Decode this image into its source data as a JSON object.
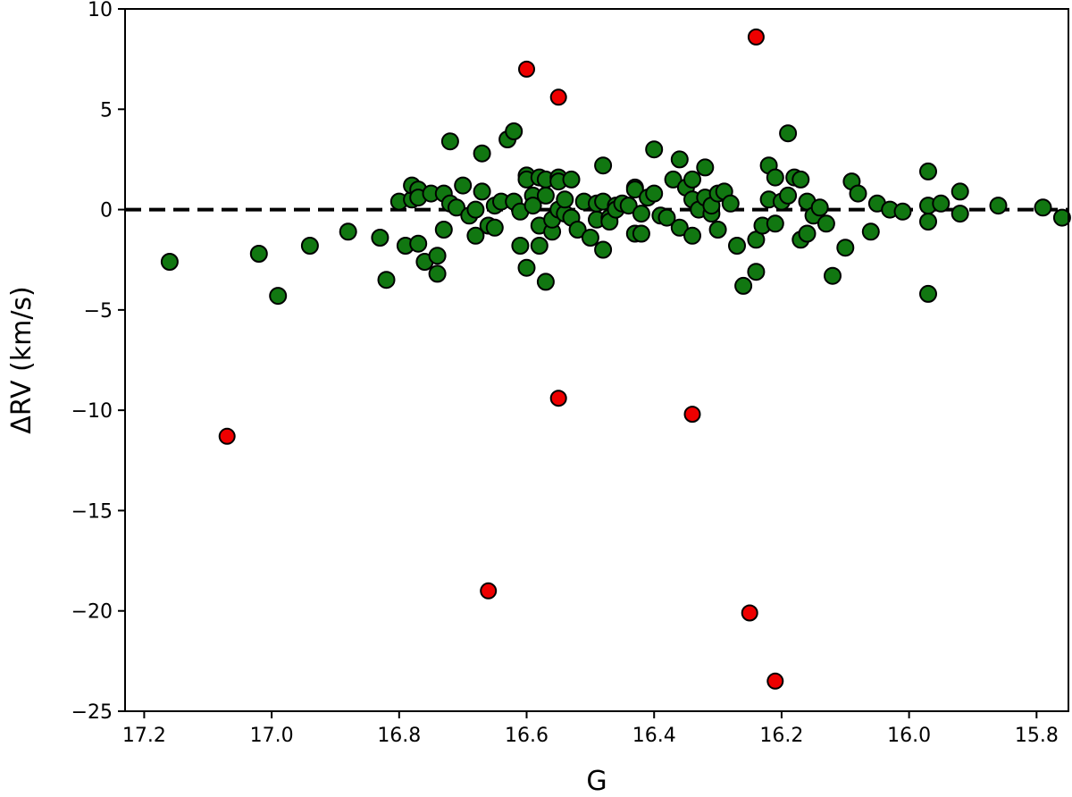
{
  "chart_data": {
    "type": "scatter",
    "xlabel": "G",
    "ylabel": "ΔRV (km/s)",
    "xlim": [
      17.23,
      15.75
    ],
    "ylim": [
      -25.0,
      10.0
    ],
    "x_inverted": true,
    "xticks": [
      17.2,
      17.0,
      16.8,
      16.6,
      16.4,
      16.2,
      16.0,
      15.8
    ],
    "xtick_labels": [
      "17.2",
      "17.0",
      "16.8",
      "16.6",
      "16.4",
      "16.2",
      "16.0",
      "15.8"
    ],
    "yticks": [
      10,
      5,
      0,
      -5,
      -10,
      -15,
      -20,
      -25
    ],
    "ytick_labels": [
      "10",
      "5",
      "0",
      "−5",
      "−10",
      "−15",
      "−20",
      "−25"
    ],
    "grid": false,
    "reference_line": {
      "y": 0,
      "style": "dashed",
      "color": "#000000"
    },
    "colors": {
      "inlier": "#117711",
      "outlier": "#ee0000",
      "edge": "#000000"
    },
    "series": [
      {
        "points": [
          [
            17.16,
            -2.6
          ],
          [
            17.02,
            -2.2
          ],
          [
            16.99,
            -4.3
          ],
          [
            16.94,
            -1.8
          ],
          [
            16.88,
            -1.1
          ],
          [
            16.83,
            -1.4
          ],
          [
            16.82,
            -3.5
          ],
          [
            16.8,
            0.4
          ],
          [
            16.79,
            -1.8
          ],
          [
            16.78,
            0.5
          ],
          [
            16.78,
            1.2
          ],
          [
            16.77,
            1.0
          ],
          [
            16.77,
            0.6
          ],
          [
            16.77,
            -1.7
          ],
          [
            16.76,
            -2.6
          ],
          [
            16.75,
            0.8
          ],
          [
            16.74,
            -3.2
          ],
          [
            16.74,
            -2.3
          ],
          [
            16.73,
            -1.0
          ],
          [
            16.73,
            0.8
          ],
          [
            16.72,
            0.3
          ],
          [
            16.72,
            3.4
          ],
          [
            16.71,
            0.1
          ],
          [
            16.7,
            1.2
          ],
          [
            16.69,
            -0.3
          ],
          [
            16.68,
            -1.3
          ],
          [
            16.68,
            0.0
          ],
          [
            16.67,
            2.8
          ],
          [
            16.67,
            0.9
          ],
          [
            16.66,
            -0.8
          ],
          [
            16.65,
            -0.9
          ],
          [
            16.65,
            0.2
          ],
          [
            16.64,
            0.4
          ],
          [
            16.63,
            3.5
          ],
          [
            16.62,
            3.9
          ],
          [
            16.62,
            0.4
          ],
          [
            16.61,
            -0.1
          ],
          [
            16.61,
            -1.8
          ],
          [
            16.6,
            1.7
          ],
          [
            16.6,
            1.5
          ],
          [
            16.6,
            -2.9
          ],
          [
            16.59,
            0.7
          ],
          [
            16.59,
            0.2
          ],
          [
            16.58,
            1.6
          ],
          [
            16.58,
            -0.8
          ],
          [
            16.58,
            -1.8
          ],
          [
            16.57,
            -3.6
          ],
          [
            16.57,
            1.5
          ],
          [
            16.57,
            0.7
          ],
          [
            16.56,
            -1.1
          ],
          [
            16.56,
            -0.5
          ],
          [
            16.55,
            0.0
          ],
          [
            16.55,
            1.6
          ],
          [
            16.55,
            1.4
          ],
          [
            16.54,
            -0.2
          ],
          [
            16.54,
            0.5
          ],
          [
            16.53,
            -0.4
          ],
          [
            16.53,
            1.5
          ],
          [
            16.52,
            -1.0
          ],
          [
            16.51,
            0.4
          ],
          [
            16.5,
            -1.4
          ],
          [
            16.49,
            -0.5
          ],
          [
            16.49,
            0.3
          ],
          [
            16.48,
            -2.0
          ],
          [
            16.48,
            0.4
          ],
          [
            16.48,
            2.2
          ],
          [
            16.47,
            -0.4
          ],
          [
            16.47,
            -0.6
          ],
          [
            16.46,
            0.2
          ],
          [
            16.46,
            0.0
          ],
          [
            16.45,
            0.3
          ],
          [
            16.44,
            0.2
          ],
          [
            16.43,
            1.1
          ],
          [
            16.43,
            1.0
          ],
          [
            16.43,
            -1.2
          ],
          [
            16.42,
            -0.2
          ],
          [
            16.42,
            -1.2
          ],
          [
            16.41,
            0.6
          ],
          [
            16.4,
            3.0
          ],
          [
            16.4,
            0.8
          ],
          [
            16.39,
            -0.3
          ],
          [
            16.38,
            -0.4
          ],
          [
            16.37,
            1.5
          ],
          [
            16.36,
            -0.9
          ],
          [
            16.36,
            2.5
          ],
          [
            16.35,
            1.1
          ],
          [
            16.34,
            -1.3
          ],
          [
            16.34,
            0.5
          ],
          [
            16.34,
            1.5
          ],
          [
            16.33,
            0.0
          ],
          [
            16.32,
            2.1
          ],
          [
            16.32,
            0.6
          ],
          [
            16.31,
            -0.2
          ],
          [
            16.31,
            0.2
          ],
          [
            16.3,
            0.8
          ],
          [
            16.3,
            -1.0
          ],
          [
            16.29,
            0.9
          ],
          [
            16.28,
            0.3
          ],
          [
            16.27,
            -1.8
          ],
          [
            16.26,
            -3.8
          ],
          [
            16.24,
            -3.1
          ],
          [
            16.24,
            -1.5
          ],
          [
            16.23,
            -0.8
          ],
          [
            16.22,
            0.5
          ],
          [
            16.22,
            2.2
          ],
          [
            16.21,
            -0.7
          ],
          [
            16.21,
            1.6
          ],
          [
            16.2,
            0.4
          ],
          [
            16.19,
            3.8
          ],
          [
            16.19,
            0.7
          ],
          [
            16.18,
            1.6
          ],
          [
            16.17,
            -1.5
          ],
          [
            16.17,
            1.5
          ],
          [
            16.16,
            -1.2
          ],
          [
            16.16,
            0.4
          ],
          [
            16.15,
            -0.3
          ],
          [
            16.14,
            0.1
          ],
          [
            16.13,
            -0.7
          ],
          [
            16.12,
            -3.3
          ],
          [
            16.1,
            -1.9
          ],
          [
            16.09,
            1.4
          ],
          [
            16.08,
            0.8
          ],
          [
            16.06,
            -1.1
          ],
          [
            16.05,
            0.3
          ],
          [
            16.03,
            0.0
          ],
          [
            16.01,
            -0.1
          ],
          [
            15.97,
            1.9
          ],
          [
            15.97,
            0.2
          ],
          [
            15.97,
            -0.6
          ],
          [
            15.97,
            -4.2
          ],
          [
            15.95,
            0.3
          ],
          [
            15.92,
            0.9
          ],
          [
            15.92,
            -0.2
          ],
          [
            15.86,
            0.2
          ],
          [
            15.79,
            0.1
          ],
          [
            15.76,
            -0.4
          ]
        ]
      },
      {
        "points": [
          [
            17.07,
            -11.3
          ],
          [
            16.66,
            -19.0
          ],
          [
            16.6,
            7.0
          ],
          [
            16.55,
            5.6
          ],
          [
            16.55,
            -9.4
          ],
          [
            16.34,
            -10.2
          ],
          [
            16.24,
            8.6
          ],
          [
            16.25,
            -20.1
          ],
          [
            16.21,
            -23.5
          ]
        ]
      }
    ]
  }
}
